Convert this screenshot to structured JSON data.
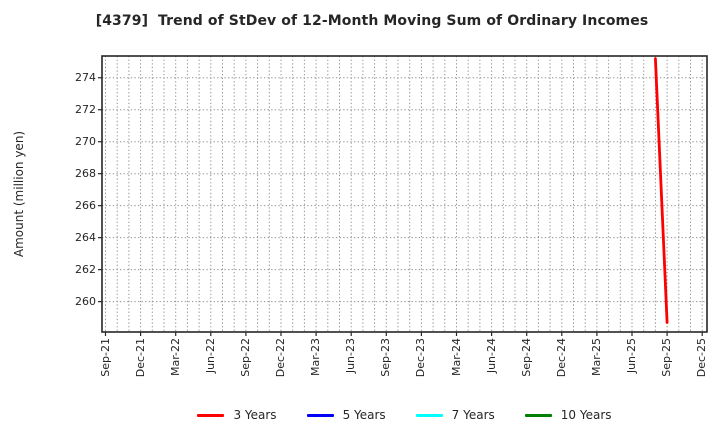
{
  "figure": {
    "title": "[4379]  Trend of StDev of 12-Month Moving Sum of Ordinary Incomes",
    "ylabel": "Amount (million yen)"
  },
  "chart_data": {
    "type": "line",
    "title": "[4379]  Trend of StDev of 12-Month Moving Sum of Ordinary Incomes",
    "xlabel": "",
    "ylabel": "Amount (million yen)",
    "x_start_month": "Sep-21",
    "x_end_month": "Dec-25",
    "x_tick_labels": [
      "Sep-21",
      "Dec-21",
      "Mar-22",
      "Jun-22",
      "Sep-22",
      "Dec-22",
      "Mar-23",
      "Jun-23",
      "Sep-23",
      "Dec-23",
      "Mar-24",
      "Jun-24",
      "Sep-24",
      "Dec-24",
      "Mar-25",
      "Jun-25",
      "Sep-25",
      "Dec-25"
    ],
    "y_ticks": [
      260,
      262,
      264,
      266,
      268,
      270,
      272,
      274
    ],
    "ylim": [
      258.1,
      275.36
    ],
    "grid": {
      "visible": true,
      "style": "dotted",
      "color": "#909090",
      "vertical_interval": "monthly",
      "horizontal_interval": 2
    },
    "axis_border_color": "#262626",
    "series": [
      {
        "name": "3 Years",
        "color": "#ff0000",
        "points": [
          {
            "month": "Aug-25",
            "value": 275.2
          },
          {
            "month": "Sep-25",
            "value": 258.7
          }
        ]
      },
      {
        "name": "5 Years",
        "color": "#0000ff",
        "points": []
      },
      {
        "name": "7 Years",
        "color": "#00ffff",
        "points": []
      },
      {
        "name": "10 Years",
        "color": "#008000",
        "points": []
      }
    ],
    "legend": {
      "position": "bottom",
      "entries": [
        {
          "label": "3 Years",
          "color": "#ff0000"
        },
        {
          "label": "5 Years",
          "color": "#0000ff"
        },
        {
          "label": "7 Years",
          "color": "#00ffff"
        },
        {
          "label": "10 Years",
          "color": "#008000"
        }
      ]
    }
  }
}
